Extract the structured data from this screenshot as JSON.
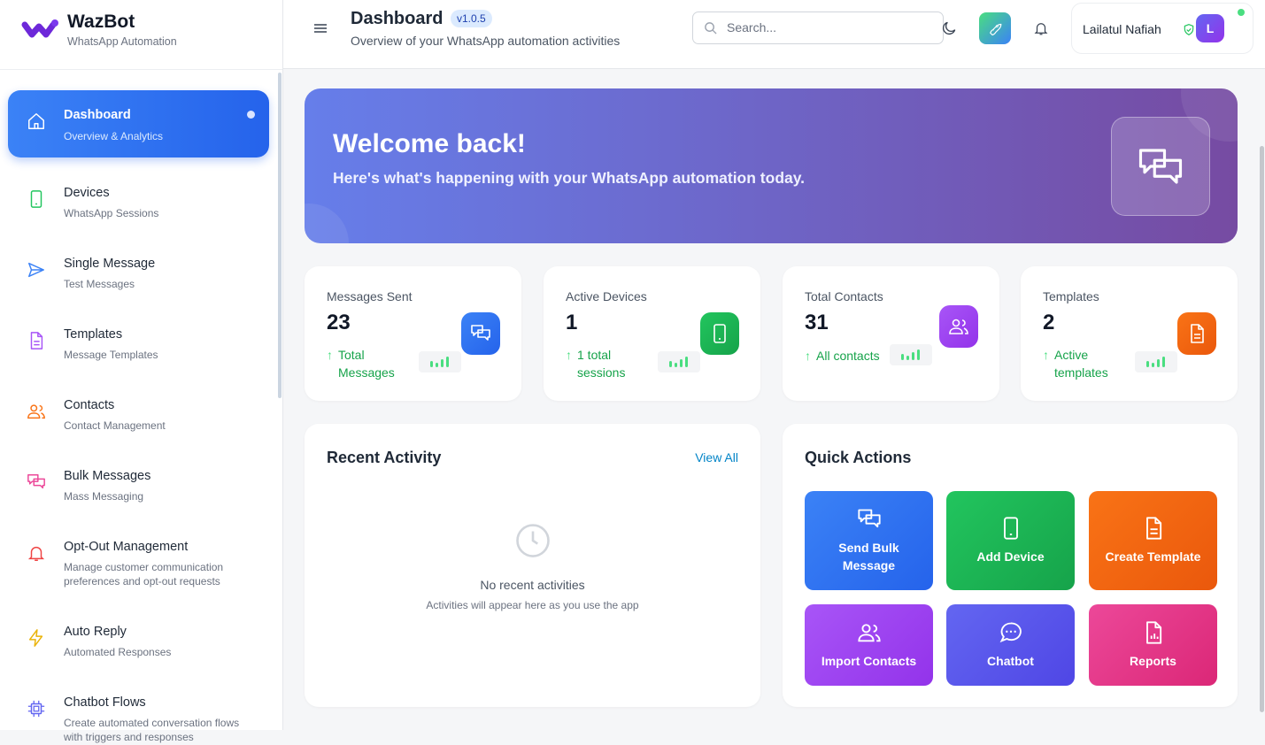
{
  "brand": {
    "name": "WazBot",
    "subtitle": "WhatsApp Automation"
  },
  "sidebar": {
    "items": [
      {
        "title": "Dashboard",
        "subtitle": "Overview & Analytics",
        "icon": "home-icon",
        "active": true
      },
      {
        "title": "Devices",
        "subtitle": "WhatsApp Sessions",
        "icon": "smartphone-icon",
        "color": "#22c55e"
      },
      {
        "title": "Single Message",
        "subtitle": "Test Messages",
        "icon": "send-icon",
        "color": "#3b82f6"
      },
      {
        "title": "Templates",
        "subtitle": "Message Templates",
        "icon": "file-text-icon",
        "color": "#a855f7"
      },
      {
        "title": "Contacts",
        "subtitle": "Contact Management",
        "icon": "users-icon",
        "color": "#f97316"
      },
      {
        "title": "Bulk Messages",
        "subtitle": "Mass Messaging",
        "icon": "messages-icon",
        "color": "#ec4899"
      },
      {
        "title": "Opt-Out Management",
        "subtitle": "Manage customer communication preferences and opt-out requests",
        "icon": "bell-icon",
        "color": "#ef4444"
      },
      {
        "title": "Auto Reply",
        "subtitle": "Automated Responses",
        "icon": "zap-icon",
        "color": "#eab308"
      },
      {
        "title": "Chatbot Flows",
        "subtitle": "Create automated conversation flows with triggers and responses",
        "icon": "cpu-icon",
        "color": "#6366f1"
      }
    ]
  },
  "header": {
    "title": "Dashboard",
    "version": "v1.0.5",
    "subtitle": "Overview of your WhatsApp automation activities",
    "search_placeholder": "Search...",
    "user_name": "Lailatul Nafiah",
    "avatar_letter": "L"
  },
  "banner": {
    "title": "Welcome back!",
    "subtitle": "Here's what's happening with your WhatsApp automation today."
  },
  "stats": [
    {
      "label": "Messages Sent",
      "value": "23",
      "trend": "Total Messages",
      "icon": "messages-icon",
      "gradient": [
        "#3b82f6",
        "#2563eb"
      ]
    },
    {
      "label": "Active Devices",
      "value": "1",
      "trend": "1 total sessions",
      "icon": "smartphone-icon",
      "gradient": [
        "#22c55e",
        "#16a34a"
      ]
    },
    {
      "label": "Total Contacts",
      "value": "31",
      "trend": "All contacts",
      "icon": "users-icon",
      "gradient": [
        "#a855f7",
        "#9333ea"
      ]
    },
    {
      "label": "Templates",
      "value": "2",
      "trend": "Active templates",
      "icon": "file-text-icon",
      "gradient": [
        "#f97316",
        "#ea580c"
      ]
    }
  ],
  "recent": {
    "title": "Recent Activity",
    "view_all": "View All",
    "empty_title": "No recent activities",
    "empty_sub": "Activities will appear here as you use the app"
  },
  "quick": {
    "title": "Quick Actions",
    "items": [
      {
        "label": "Send Bulk Message",
        "icon": "messages-icon",
        "gradient": [
          "#3b82f6",
          "#2563eb"
        ]
      },
      {
        "label": "Add Device",
        "icon": "smartphone-icon",
        "gradient": [
          "#22c55e",
          "#16a34a"
        ]
      },
      {
        "label": "Create Template",
        "icon": "file-text-icon",
        "gradient": [
          "#f97316",
          "#ea580c"
        ]
      },
      {
        "label": "Import Contacts",
        "icon": "users-icon",
        "gradient": [
          "#a855f7",
          "#9333ea"
        ]
      },
      {
        "label": "Chatbot",
        "icon": "message-circle-icon",
        "gradient": [
          "#6366f1",
          "#4f46e5"
        ]
      },
      {
        "label": "Reports",
        "icon": "report-icon",
        "gradient": [
          "#ec4899",
          "#db2777"
        ]
      }
    ]
  }
}
